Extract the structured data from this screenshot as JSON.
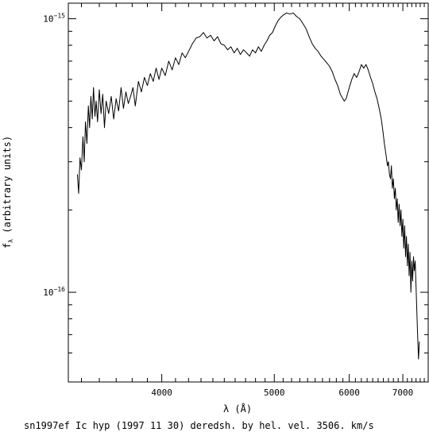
{
  "chart_data": {
    "type": "line",
    "title": "",
    "xlabel": "λ (Å)",
    "ylabel": "f",
    "ylabel_subscript": "λ",
    "ylabel_suffix": " (arbitrary units)",
    "caption": "sn1997ef Ic hyp (1997 11 30) deredsh. by hel. vel.  3506. km/s",
    "x_scale": "reciprocal",
    "y_scale": "log",
    "xlim": [
      3430,
      7600
    ],
    "ylim": [
      4.7e-17,
      1.14e-15
    ],
    "x_ticks_major": [
      {
        "value": 4000,
        "label": "4000"
      },
      {
        "value": 5000,
        "label": "5000"
      },
      {
        "value": 6000,
        "label": "6000"
      },
      {
        "value": 7000,
        "label": "7000"
      }
    ],
    "x_ticks_minor": [
      3500,
      3600,
      3700,
      3800,
      3900,
      4100,
      4200,
      4300,
      4400,
      4500,
      4600,
      4700,
      4800,
      4900,
      5100,
      5200,
      5300,
      5400,
      5500,
      5600,
      5700,
      5800,
      5900,
      6100,
      6200,
      6300,
      6400,
      6500,
      6600,
      6700,
      6800,
      6900,
      7100,
      7200,
      7300,
      7400,
      7500
    ],
    "y_ticks_major": [
      {
        "value": 1e-15,
        "label": "10",
        "exp": "−15"
      },
      {
        "value": 1e-16,
        "label": "10",
        "exp": "−16"
      }
    ],
    "y_ticks_minor": [
      6e-17,
      7e-17,
      8e-17,
      9e-17,
      2e-16,
      3e-16,
      4e-16,
      5e-16,
      6e-16,
      7e-16,
      8e-16,
      9e-16
    ],
    "grid": false,
    "legend": "none",
    "series": [
      {
        "x": [
          3478,
          3485,
          3492,
          3500,
          3508,
          3515,
          3522,
          3530,
          3538,
          3545,
          3552,
          3560,
          3567,
          3575,
          3582,
          3590,
          3600,
          3610,
          3620,
          3630,
          3640,
          3655,
          3670,
          3685,
          3700,
          3715,
          3730,
          3745,
          3760,
          3775,
          3790,
          3805,
          3820,
          3840,
          3860,
          3880,
          3900,
          3920,
          3940,
          3960,
          3980,
          4000,
          4025,
          4050,
          4075,
          4100,
          4125,
          4150,
          4175,
          4200,
          4230,
          4260,
          4290,
          4320,
          4350,
          4380,
          4410,
          4440,
          4470,
          4500,
          4530,
          4560,
          4590,
          4620,
          4650,
          4680,
          4710,
          4740,
          4770,
          4800,
          4830,
          4860,
          4890,
          4920,
          4950,
          4980,
          5010,
          5040,
          5070,
          5100,
          5140,
          5180,
          5220,
          5260,
          5300,
          5340,
          5380,
          5420,
          5460,
          5500,
          5540,
          5580,
          5620,
          5660,
          5700,
          5740,
          5780,
          5820,
          5860,
          5900,
          5920,
          5950,
          5980,
          6010,
          6040,
          6080,
          6120,
          6160,
          6200,
          6240,
          6280,
          6320,
          6360,
          6400,
          6440,
          6480,
          6520,
          6560,
          6590,
          6620,
          6650,
          6680,
          6700,
          6720,
          6740,
          6760,
          6780,
          6800,
          6820,
          6840,
          6860,
          6880,
          6900,
          6920,
          6940,
          6960,
          6980,
          7000,
          7020,
          7040,
          7060,
          7080,
          7100,
          7120,
          7140,
          7160,
          7180,
          7200,
          7220,
          7240,
          7260,
          7280,
          7300,
          7320,
          7340,
          7360,
          7380
        ],
        "y": [
          2.7e-16,
          2.3e-16,
          3.1e-16,
          2.8e-16,
          3.7e-16,
          3e-16,
          4.2e-16,
          3.5e-16,
          4.8e-16,
          4e-16,
          5.2e-16,
          4.3e-16,
          5.6e-16,
          4.4e-16,
          5e-16,
          4.2e-16,
          5.5e-16,
          4.5e-16,
          5.3e-16,
          4e-16,
          5e-16,
          4.5e-16,
          5.2e-16,
          4.3e-16,
          5.1e-16,
          4.6e-16,
          5.6e-16,
          4.7e-16,
          5.4e-16,
          4.9e-16,
          5.2e-16,
          5.6e-16,
          4.8e-16,
          5.9e-16,
          5.4e-16,
          6.1e-16,
          5.7e-16,
          6.3e-16,
          5.9e-16,
          6.6e-16,
          6e-16,
          6.6e-16,
          6.2e-16,
          7e-16,
          6.5e-16,
          7.2e-16,
          6.8e-16,
          7.5e-16,
          7.2e-16,
          7.6e-16,
          8.1e-16,
          8.5e-16,
          8.6e-16,
          8.9e-16,
          8.5e-16,
          8.7e-16,
          8.3e-16,
          8.6e-16,
          8.1e-16,
          8e-16,
          7.7e-16,
          7.9e-16,
          7.5e-16,
          7.8e-16,
          7.4e-16,
          7.7e-16,
          7.5e-16,
          7.3e-16,
          7.7e-16,
          7.5e-16,
          7.9e-16,
          7.6e-16,
          8e-16,
          8.3e-16,
          8.7e-16,
          8.9e-16,
          9.4e-16,
          9.8e-16,
          1.01e-15,
          1.03e-15,
          1.05e-15,
          1.04e-15,
          1.05e-15,
          1.02e-15,
          1e-15,
          9.6e-16,
          9.2e-16,
          8.6e-16,
          8.1e-16,
          7.8e-16,
          7.6e-16,
          7.3e-16,
          7.1e-16,
          6.9e-16,
          6.7e-16,
          6.4e-16,
          6e-16,
          5.7e-16,
          5.3e-16,
          5.1e-16,
          5e-16,
          5.1e-16,
          5.4e-16,
          5.7e-16,
          6e-16,
          6.3e-16,
          6.1e-16,
          6.4e-16,
          6.8e-16,
          6.6e-16,
          6.8e-16,
          6.5e-16,
          6.1e-16,
          5.8e-16,
          5.4e-16,
          5.1e-16,
          4.7e-16,
          4.3e-16,
          3.9e-16,
          3.5e-16,
          3.2e-16,
          2.9e-16,
          3e-16,
          2.7e-16,
          2.6e-16,
          2.9e-16,
          2.4e-16,
          2.6e-16,
          2.2e-16,
          2.4e-16,
          2e-16,
          2.2e-16,
          1.8e-16,
          2.1e-16,
          1.75e-16,
          2e-16,
          1.6e-16,
          1.85e-16,
          1.45e-16,
          1.75e-16,
          1.35e-16,
          1.6e-16,
          1.25e-16,
          1.5e-16,
          1.15e-16,
          1.4e-16,
          1e-16,
          1.3e-16,
          1.1e-16,
          1.35e-16,
          1.2e-16,
          1.3e-16,
          1.05e-16,
          8.5e-17,
          6.8e-17,
          5.7e-17,
          6.6e-17
        ]
      }
    ]
  }
}
